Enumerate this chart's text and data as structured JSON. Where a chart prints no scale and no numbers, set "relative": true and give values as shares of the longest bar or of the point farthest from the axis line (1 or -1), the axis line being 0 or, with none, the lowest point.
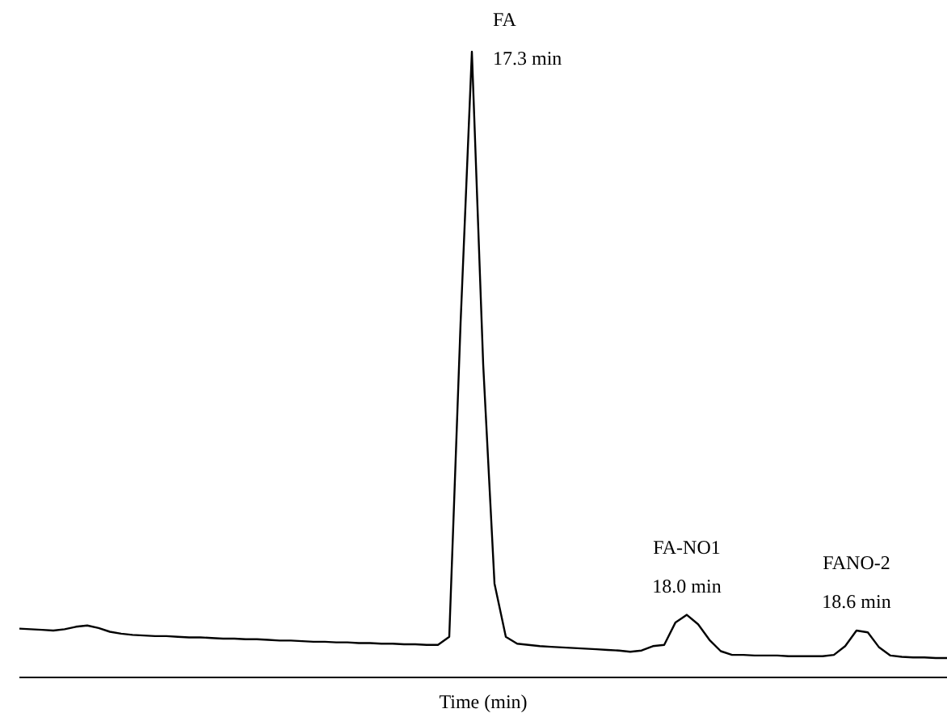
{
  "chart_data": {
    "type": "line",
    "relative": true,
    "xlabel": "Time (min)",
    "line_style": "solid",
    "categories": [
      null,
      null,
      null,
      null,
      null,
      null,
      null,
      null,
      null,
      null,
      null,
      null,
      null,
      null,
      null,
      null,
      null,
      null,
      null,
      null,
      null,
      null,
      null,
      null,
      null,
      null,
      null,
      null,
      null,
      null,
      null,
      null,
      null,
      null,
      null,
      null,
      null,
      null,
      null,
      null,
      null,
      null,
      null,
      null,
      null,
      null,
      null,
      null,
      null,
      null,
      null,
      null,
      null,
      null,
      null,
      null,
      null,
      null,
      null,
      null,
      null,
      null,
      null,
      null,
      null,
      null,
      null,
      null,
      null,
      null,
      null,
      null,
      null,
      null,
      null,
      null,
      null,
      null,
      null,
      null,
      null,
      null,
      null
    ],
    "series": [
      {
        "color": "#000000",
        "values": [
          0.078,
          0.077,
          0.076,
          0.075,
          0.077,
          0.081,
          0.083,
          0.079,
          0.073,
          0.07,
          0.068,
          0.067,
          0.066,
          0.066,
          0.065,
          0.064,
          0.064,
          0.063,
          0.062,
          0.062,
          0.061,
          0.061,
          0.06,
          0.059,
          0.059,
          0.058,
          0.057,
          0.057,
          0.056,
          0.056,
          0.055,
          0.055,
          0.054,
          0.054,
          0.053,
          0.053,
          0.052,
          0.052,
          0.065,
          0.566,
          1.0,
          0.5,
          0.15,
          0.065,
          0.054,
          0.052,
          0.05,
          0.049,
          0.048,
          0.047,
          0.046,
          0.045,
          0.044,
          0.043,
          0.041,
          0.043,
          0.05,
          0.052,
          0.088,
          0.1,
          0.085,
          0.06,
          0.042,
          0.036,
          0.036,
          0.035,
          0.035,
          0.035,
          0.034,
          0.034,
          0.034,
          0.034,
          0.036,
          0.05,
          0.075,
          0.072,
          0.048,
          0.035,
          0.033,
          0.032,
          0.032,
          0.031,
          0.031
        ]
      }
    ],
    "annotations": [
      "FA\n17.3 min",
      "FA-NO1\n18.0 min",
      "FANO-2\n18.6 min"
    ]
  }
}
